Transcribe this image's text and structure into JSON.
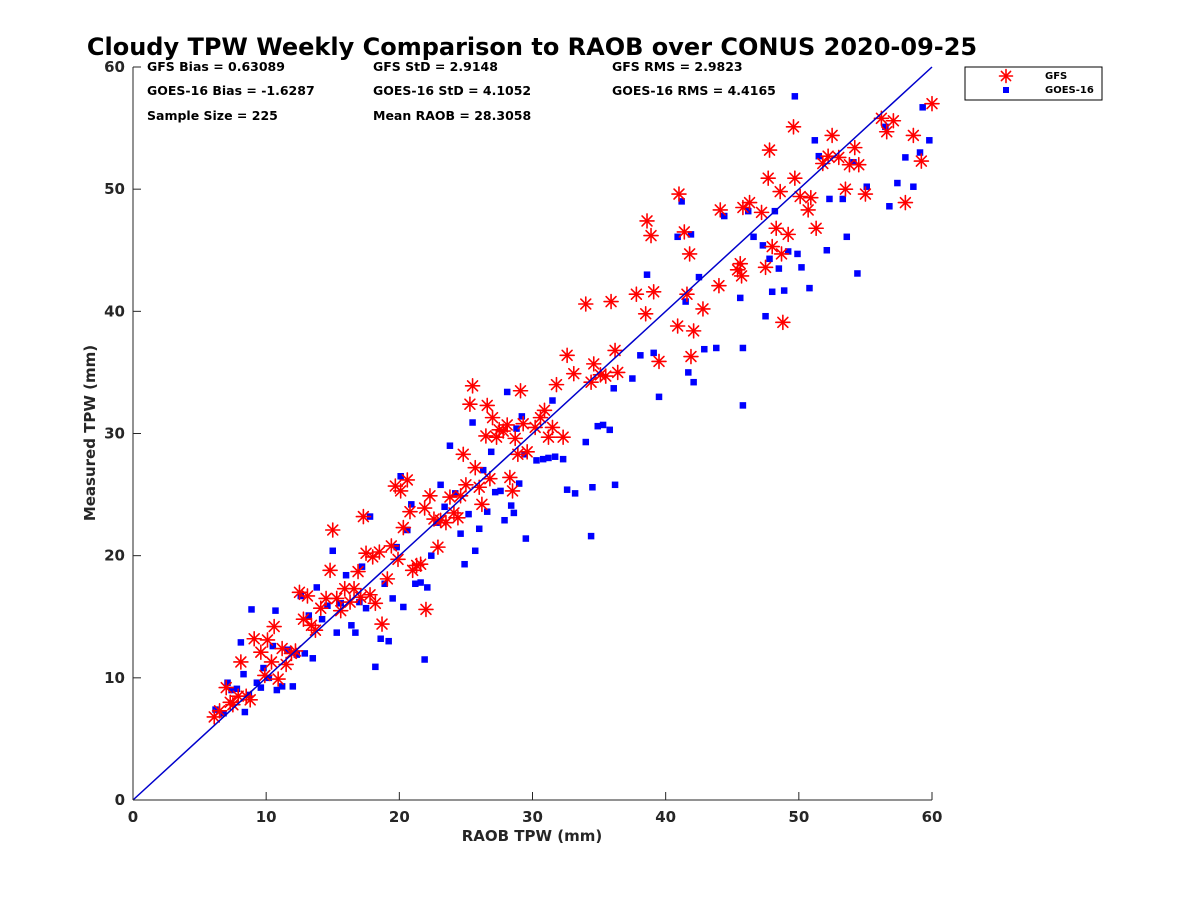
{
  "chart_data": {
    "type": "scatter",
    "title": "Cloudy TPW Weekly Comparison to RAOB over CONUS 2020-09-25",
    "xlabel": "RAOB TPW (mm)",
    "ylabel": "Measured TPW (mm)",
    "xlim": [
      0,
      60
    ],
    "ylim": [
      0,
      60
    ],
    "x_ticks": [
      "0",
      "10",
      "20",
      "30",
      "40",
      "50",
      "60"
    ],
    "y_ticks": [
      "0",
      "10",
      "20",
      "30",
      "40",
      "50",
      "60"
    ],
    "grid": false,
    "legend_position": "outside-top-right",
    "reference_line": {
      "x": [
        0,
        60
      ],
      "y": [
        0,
        60
      ],
      "color": "#0000cc"
    },
    "stats": [
      {
        "label": "GFS Bias = 0.63089"
      },
      {
        "label": "GFS StD = 2.9148"
      },
      {
        "label": "GFS RMS = 2.9823"
      },
      {
        "label": "GOES-16 Bias = -1.6287"
      },
      {
        "label": "GOES-16 StD = 4.1052"
      },
      {
        "label": "GOES-16 RMS = 4.4165"
      },
      {
        "label": "Sample Size = 225"
      },
      {
        "label": "Mean RAOB = 28.3058"
      }
    ],
    "series": [
      {
        "name": "GFS",
        "marker": "asterisk",
        "color": "#ff0000",
        "points": [
          [
            6.1,
            6.8
          ],
          [
            6.5,
            7.3
          ],
          [
            7,
            9.2
          ],
          [
            7.3,
            8
          ],
          [
            7.5,
            7.8
          ],
          [
            7.9,
            8.5
          ],
          [
            8.1,
            11.3
          ],
          [
            8.5,
            8.5
          ],
          [
            8.8,
            8.2
          ],
          [
            9.1,
            13.2
          ],
          [
            9.6,
            12.1
          ],
          [
            9.9,
            10.2
          ],
          [
            10.1,
            13.1
          ],
          [
            10.4,
            11.3
          ],
          [
            10.6,
            14.2
          ],
          [
            10.9,
            9.9
          ],
          [
            11.2,
            12.4
          ],
          [
            11.5,
            11.1
          ],
          [
            11.9,
            12
          ],
          [
            12.2,
            12.2
          ],
          [
            12.5,
            17
          ],
          [
            12.8,
            14.8
          ],
          [
            13.1,
            16.7
          ],
          [
            13.4,
            14.3
          ],
          [
            13.7,
            13.9
          ],
          [
            14.1,
            15.7
          ],
          [
            14.5,
            16.5
          ],
          [
            14.8,
            18.8
          ],
          [
            15,
            22.1
          ],
          [
            15.3,
            16.5
          ],
          [
            15.6,
            15.5
          ],
          [
            15.9,
            17.3
          ],
          [
            16.3,
            16.2
          ],
          [
            16.6,
            17.3
          ],
          [
            16.9,
            18.7
          ],
          [
            17.1,
            16.6
          ],
          [
            17.3,
            23.2
          ],
          [
            17.5,
            20.2
          ],
          [
            17.8,
            16.8
          ],
          [
            18,
            19.9
          ],
          [
            18.2,
            16.1
          ],
          [
            18.5,
            20.3
          ],
          [
            18.7,
            14.4
          ],
          [
            19.1,
            18.1
          ],
          [
            19.4,
            20.8
          ],
          [
            19.7,
            25.7
          ],
          [
            19.9,
            19.7
          ],
          [
            20.1,
            25.3
          ],
          [
            20.3,
            22.3
          ],
          [
            20.6,
            26.2
          ],
          [
            20.8,
            23.6
          ],
          [
            21,
            18.8
          ],
          [
            21.3,
            19.2
          ],
          [
            21.6,
            19.3
          ],
          [
            21.9,
            23.9
          ],
          [
            22,
            15.6
          ],
          [
            22.3,
            24.9
          ],
          [
            22.6,
            23
          ],
          [
            22.9,
            20.7
          ],
          [
            23.1,
            22.9
          ],
          [
            23.5,
            22.7
          ],
          [
            23.8,
            24.8
          ],
          [
            24.1,
            23.5
          ],
          [
            24.4,
            23.1
          ],
          [
            24.6,
            24.9
          ],
          [
            24.8,
            28.3
          ],
          [
            25,
            25.8
          ],
          [
            25.3,
            32.4
          ],
          [
            25.5,
            33.9
          ],
          [
            25.7,
            27.2
          ],
          [
            26,
            25.6
          ],
          [
            26.2,
            24.2
          ],
          [
            26.5,
            29.8
          ],
          [
            26.6,
            32.3
          ],
          [
            26.8,
            26.3
          ],
          [
            27,
            31.3
          ],
          [
            27.3,
            29.7
          ],
          [
            27.5,
            30.3
          ],
          [
            27.8,
            30.2
          ],
          [
            28.1,
            30.7
          ],
          [
            28.3,
            26.4
          ],
          [
            28.5,
            25.3
          ],
          [
            28.7,
            29.6
          ],
          [
            28.9,
            28.3
          ],
          [
            29.1,
            33.5
          ],
          [
            29.3,
            30.8
          ],
          [
            29.6,
            28.5
          ],
          [
            30.2,
            30.5
          ],
          [
            30.6,
            31.3
          ],
          [
            30.9,
            31.9
          ],
          [
            31.2,
            29.7
          ],
          [
            31.5,
            30.5
          ],
          [
            31.8,
            34
          ],
          [
            32.3,
            29.7
          ],
          [
            32.6,
            36.4
          ],
          [
            33.1,
            34.9
          ],
          [
            34.4,
            34.2
          ],
          [
            34.6,
            35.7
          ],
          [
            35.1,
            34.8
          ],
          [
            35.5,
            34.7
          ],
          [
            36.2,
            36.8
          ],
          [
            36.4,
            35
          ],
          [
            34,
            40.6
          ],
          [
            35.9,
            40.8
          ],
          [
            37.8,
            41.4
          ],
          [
            38.5,
            39.8
          ],
          [
            38.6,
            47.4
          ],
          [
            38.9,
            46.2
          ],
          [
            39.1,
            41.6
          ],
          [
            39.5,
            35.9
          ],
          [
            40.9,
            38.8
          ],
          [
            41,
            49.6
          ],
          [
            41.4,
            46.5
          ],
          [
            41.6,
            41.4
          ],
          [
            41.8,
            44.7
          ],
          [
            41.9,
            36.3
          ],
          [
            42.1,
            38.4
          ],
          [
            42.8,
            40.2
          ],
          [
            44,
            42.1
          ],
          [
            44.1,
            48.3
          ],
          [
            45.4,
            43.4
          ],
          [
            45.6,
            43.9
          ],
          [
            45.7,
            42.9
          ],
          [
            45.8,
            48.5
          ],
          [
            46.3,
            48.9
          ],
          [
            47.2,
            48.1
          ],
          [
            47.5,
            43.6
          ],
          [
            47.8,
            53.2
          ],
          [
            47.7,
            50.9
          ],
          [
            48,
            45.3
          ],
          [
            48.3,
            46.8
          ],
          [
            48.6,
            49.8
          ],
          [
            48.7,
            44.7
          ],
          [
            48.8,
            39.1
          ],
          [
            49.2,
            46.3
          ],
          [
            49.6,
            55.1
          ],
          [
            49.7,
            50.9
          ],
          [
            50.1,
            49.4
          ],
          [
            50.7,
            48.3
          ],
          [
            50.9,
            49.3
          ],
          [
            51.3,
            46.8
          ],
          [
            51.8,
            52.1
          ],
          [
            52.2,
            52.7
          ],
          [
            52.5,
            54.4
          ],
          [
            53,
            52.6
          ],
          [
            53.5,
            50
          ],
          [
            53.8,
            52
          ],
          [
            54.2,
            53.4
          ],
          [
            54.5,
            52
          ],
          [
            55,
            49.6
          ],
          [
            56.2,
            55.8
          ],
          [
            56.6,
            54.7
          ],
          [
            57.1,
            55.6
          ],
          [
            58,
            48.9
          ],
          [
            58.6,
            54.4
          ],
          [
            59.2,
            52.3
          ],
          [
            60,
            57
          ]
        ]
      },
      {
        "name": "GOES-16",
        "marker": "square",
        "color": "#0000ff",
        "points": [
          [
            6.2,
            7.4
          ],
          [
            6.8,
            7.1
          ],
          [
            7.1,
            9.6
          ],
          [
            7.4,
            9
          ],
          [
            7.8,
            9.1
          ],
          [
            8.1,
            12.9
          ],
          [
            8.3,
            10.3
          ],
          [
            8.4,
            7.2
          ],
          [
            8.7,
            8.6
          ],
          [
            8.9,
            15.6
          ],
          [
            9.3,
            9.6
          ],
          [
            9.6,
            9.2
          ],
          [
            9.8,
            10.8
          ],
          [
            10.2,
            10
          ],
          [
            10.5,
            12.6
          ],
          [
            10.7,
            15.5
          ],
          [
            10.8,
            9
          ],
          [
            11.2,
            9.3
          ],
          [
            11.6,
            12.3
          ],
          [
            12,
            9.3
          ],
          [
            12.3,
            11.9
          ],
          [
            12.6,
            16.7
          ],
          [
            12.9,
            12
          ],
          [
            13.2,
            15.1
          ],
          [
            13.5,
            11.6
          ],
          [
            13.8,
            17.4
          ],
          [
            14.2,
            14.8
          ],
          [
            14.6,
            15.9
          ],
          [
            15,
            20.4
          ],
          [
            15.3,
            13.7
          ],
          [
            15.6,
            16.1
          ],
          [
            16,
            18.4
          ],
          [
            16.4,
            14.3
          ],
          [
            16.7,
            13.7
          ],
          [
            17,
            16.2
          ],
          [
            17.2,
            19.1
          ],
          [
            17.5,
            15.7
          ],
          [
            17.8,
            23.2
          ],
          [
            18.2,
            10.9
          ],
          [
            18.6,
            13.2
          ],
          [
            18.9,
            17.7
          ],
          [
            19.2,
            13
          ],
          [
            19.5,
            16.5
          ],
          [
            19.8,
            20.7
          ],
          [
            20.1,
            26.5
          ],
          [
            20.3,
            15.8
          ],
          [
            20.6,
            22.1
          ],
          [
            20.9,
            24.2
          ],
          [
            21.2,
            17.7
          ],
          [
            21.6,
            17.8
          ],
          [
            21.9,
            11.5
          ],
          [
            22.1,
            17.4
          ],
          [
            22.4,
            20
          ],
          [
            22.8,
            22.7
          ],
          [
            23.1,
            25.8
          ],
          [
            23.4,
            24
          ],
          [
            23.8,
            29
          ],
          [
            24.2,
            25.1
          ],
          [
            24.6,
            21.8
          ],
          [
            24.9,
            19.3
          ],
          [
            25.2,
            23.4
          ],
          [
            25.5,
            30.9
          ],
          [
            25.7,
            20.4
          ],
          [
            26,
            22.2
          ],
          [
            26.3,
            27
          ],
          [
            26.6,
            23.6
          ],
          [
            26.9,
            28.5
          ],
          [
            27.2,
            25.2
          ],
          [
            27.6,
            25.3
          ],
          [
            27.9,
            22.9
          ],
          [
            28.1,
            33.4
          ],
          [
            28.4,
            24.1
          ],
          [
            28.6,
            23.5
          ],
          [
            28.8,
            30.4
          ],
          [
            29,
            25.9
          ],
          [
            29.2,
            31.4
          ],
          [
            29.4,
            28.3
          ],
          [
            29.5,
            21.4
          ],
          [
            30.3,
            27.8
          ],
          [
            30.8,
            27.9
          ],
          [
            31.2,
            28
          ],
          [
            31.5,
            32.7
          ],
          [
            31.7,
            28.1
          ],
          [
            32.3,
            27.9
          ],
          [
            32.6,
            25.4
          ],
          [
            33.2,
            25.1
          ],
          [
            34,
            29.3
          ],
          [
            34.5,
            25.6
          ],
          [
            34.4,
            21.6
          ],
          [
            34.9,
            30.6
          ],
          [
            35.3,
            30.7
          ],
          [
            35.8,
            30.3
          ],
          [
            36.1,
            33.7
          ],
          [
            36.2,
            25.8
          ],
          [
            37.5,
            34.5
          ],
          [
            38.1,
            36.4
          ],
          [
            38.6,
            43
          ],
          [
            39.1,
            36.6
          ],
          [
            39.5,
            33
          ],
          [
            40.9,
            46.1
          ],
          [
            41.2,
            49
          ],
          [
            41.5,
            40.8
          ],
          [
            41.9,
            46.3
          ],
          [
            41.7,
            35
          ],
          [
            42.1,
            34.2
          ],
          [
            42.5,
            42.8
          ],
          [
            42.9,
            36.9
          ],
          [
            43.8,
            37
          ],
          [
            44.4,
            47.8
          ],
          [
            45.6,
            41.1
          ],
          [
            45.8,
            37
          ],
          [
            45.8,
            32.3
          ],
          [
            46.2,
            48.2
          ],
          [
            46.6,
            46.1
          ],
          [
            47.3,
            45.4
          ],
          [
            47.5,
            39.6
          ],
          [
            47.8,
            44.3
          ],
          [
            48,
            41.6
          ],
          [
            48.2,
            48.2
          ],
          [
            48.5,
            43.5
          ],
          [
            48.9,
            41.7
          ],
          [
            49.2,
            44.9
          ],
          [
            49.7,
            57.6
          ],
          [
            49.9,
            44.7
          ],
          [
            50.2,
            43.6
          ],
          [
            50.8,
            41.9
          ],
          [
            51.2,
            54
          ],
          [
            51.5,
            52.7
          ],
          [
            52.1,
            45
          ],
          [
            52.3,
            49.2
          ],
          [
            53.3,
            49.2
          ],
          [
            53.6,
            46.1
          ],
          [
            54.1,
            52.2
          ],
          [
            54.4,
            43.1
          ],
          [
            55.1,
            50.2
          ],
          [
            56.5,
            55.1
          ],
          [
            56.8,
            48.6
          ],
          [
            57.4,
            50.5
          ],
          [
            58,
            52.6
          ],
          [
            58.6,
            50.2
          ],
          [
            59.1,
            53
          ],
          [
            59.3,
            56.7
          ],
          [
            59.8,
            54
          ]
        ]
      }
    ]
  }
}
